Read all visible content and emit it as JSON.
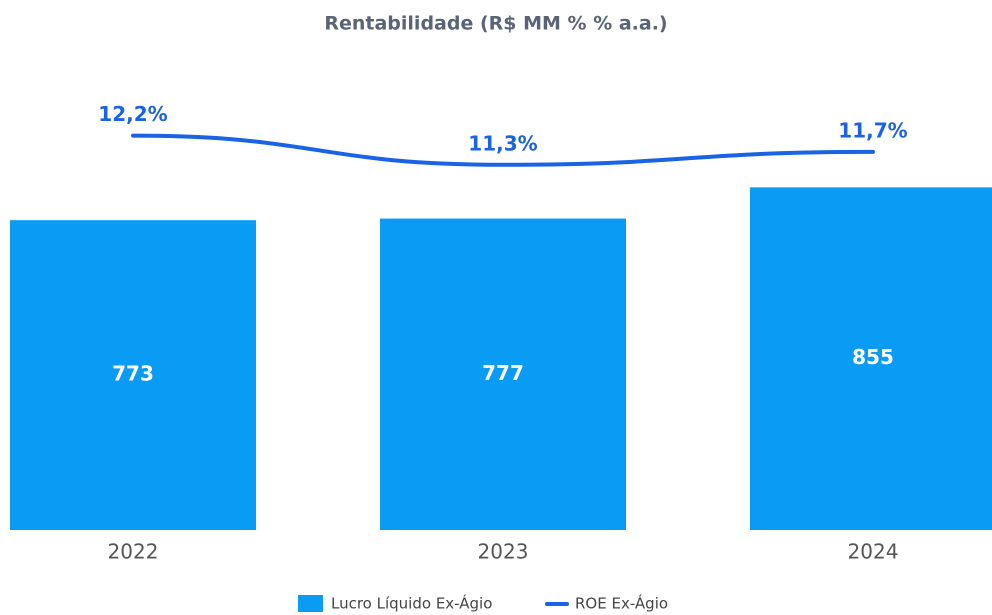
{
  "chart_data": {
    "type": "bar+line",
    "title": "Rentabilidade (R$ MM % % a.a.)",
    "categories": [
      "2022",
      "2023",
      "2024"
    ],
    "series": [
      {
        "name": "Lucro Líquido Ex-Ágio",
        "type": "bar",
        "color": "#0a9cf5",
        "values": [
          773,
          777,
          855
        ]
      },
      {
        "name": "ROE Ex-Ágio",
        "type": "line",
        "axis": "y2",
        "color": "#1a62e6",
        "values": [
          12.2,
          11.3,
          11.7
        ],
        "value_labels": [
          "12,2%",
          "11,3%",
          "11,7%"
        ]
      }
    ],
    "ylim": [
      0,
      1250
    ],
    "y2lim": [
      0,
      15.5
    ]
  }
}
